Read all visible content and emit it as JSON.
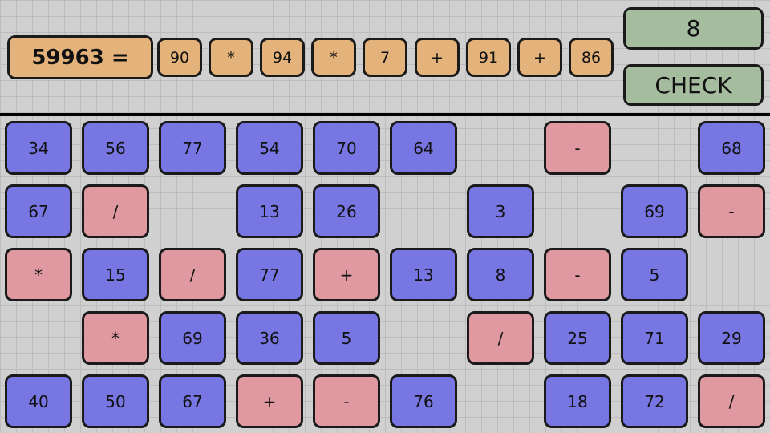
{
  "equation": {
    "target_label": "59963 =",
    "tokens": [
      "90",
      "*",
      "94",
      "*",
      "7",
      "+",
      "91",
      "+",
      "86"
    ]
  },
  "answer_display": "8",
  "check_button": "CHECK",
  "colors": {
    "equation": "#e4b27b",
    "controls": "#a5bc9e",
    "number": "#7776e2",
    "operator": "#e099a1",
    "background": "#d0d0d0"
  },
  "board": [
    [
      "34",
      "56",
      "77",
      "54",
      "70",
      "64",
      null,
      "-",
      null,
      "68"
    ],
    [
      "67",
      "/",
      null,
      "13",
      "26",
      null,
      "3",
      null,
      "69",
      "-"
    ],
    [
      "*",
      "15",
      "/",
      "77",
      "+",
      "13",
      "8",
      "-",
      "5",
      null
    ],
    [
      null,
      "*",
      "69",
      "36",
      "5",
      null,
      "/",
      "25",
      "71",
      "29"
    ],
    [
      "40",
      "50",
      "67",
      "+",
      "-",
      "76",
      null,
      "18",
      "72",
      "/"
    ]
  ]
}
